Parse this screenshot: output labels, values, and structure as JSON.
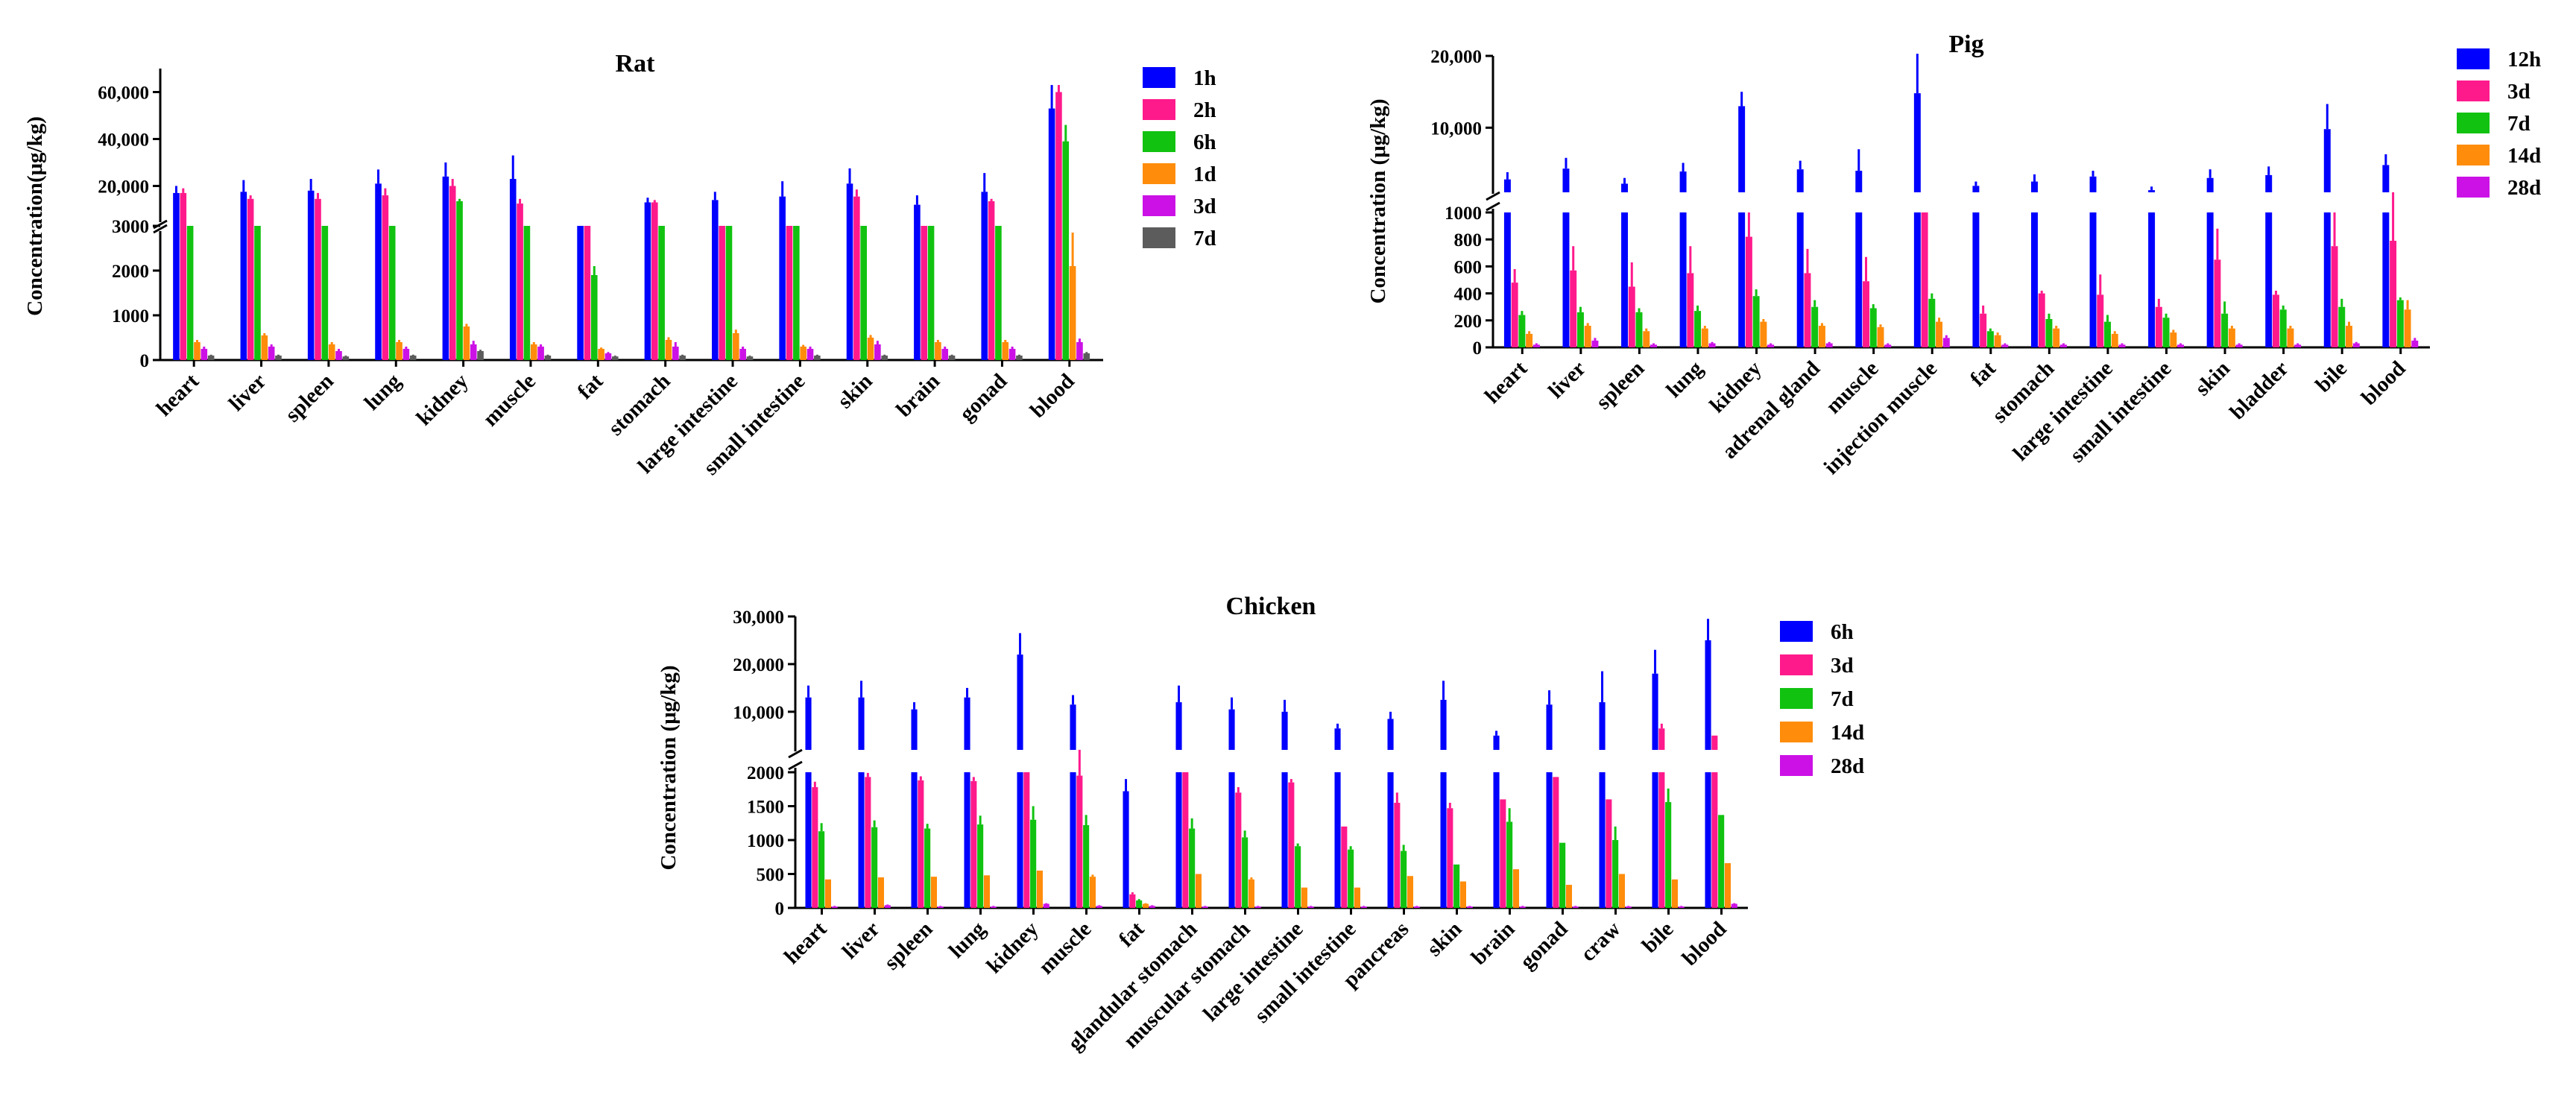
{
  "chart_data": [
    {
      "type": "bar",
      "title": "Rat",
      "xlabel": "",
      "ylabel": "Concentration(μg/kg)",
      "broken_axis": {
        "lower_range": [
          0,
          3000
        ],
        "upper_range": [
          3000,
          70000
        ]
      },
      "lower_ticks": [
        "0",
        "1000",
        "2000",
        "3000"
      ],
      "upper_ticks": [
        {
          "v": 20000,
          "label": "20,000"
        },
        {
          "v": 40000,
          "label": "40,000"
        },
        {
          "v": 60000,
          "label": "60,000"
        }
      ],
      "legend_position": "right",
      "categories": [
        "heart",
        "liver",
        "spleen",
        "lung",
        "kidney",
        "muscle",
        "fat",
        "stomach",
        "large intestine",
        "small intestine",
        "skin",
        "brain",
        "gonad",
        "blood"
      ],
      "series": [
        {
          "name": "1h",
          "color": "#0000ff",
          "values": [
            17000,
            17500,
            18000,
            21000,
            24000,
            23000,
            3000,
            13000,
            14000,
            15500,
            21000,
            12000,
            17500,
            53000
          ],
          "errors": [
            3000,
            5000,
            5000,
            6000,
            6000,
            10000,
            0,
            2000,
            3500,
            6500,
            6500,
            4000,
            8000,
            10000
          ]
        },
        {
          "name": "2h",
          "color": "#ff1a8c",
          "values": [
            17000,
            14500,
            14500,
            16000,
            20000,
            12500,
            3000,
            13000,
            3000,
            3000,
            15500,
            3000,
            13500,
            60000
          ],
          "errors": [
            2000,
            1500,
            2500,
            3000,
            3000,
            2000,
            0,
            1000,
            0,
            0,
            3000,
            0,
            1000,
            3000
          ]
        },
        {
          "name": "6h",
          "color": "#11c211",
          "values": [
            3000,
            3000,
            3000,
            3000,
            13500,
            3000,
            1900,
            3000,
            3000,
            3000,
            3000,
            3000,
            3000,
            39000
          ],
          "errors": [
            0,
            0,
            0,
            0,
            1000,
            0,
            200,
            0,
            0,
            0,
            0,
            0,
            0,
            7000
          ]
        },
        {
          "name": "1d",
          "color": "#ff8c0a",
          "values": [
            400,
            550,
            350,
            400,
            750,
            350,
            250,
            450,
            600,
            300,
            500,
            400,
            400,
            2100
          ],
          "errors": [
            50,
            50,
            50,
            50,
            60,
            50,
            30,
            60,
            80,
            40,
            60,
            50,
            50,
            750
          ]
        },
        {
          "name": "3d",
          "color": "#cc11e6",
          "values": [
            250,
            300,
            200,
            250,
            350,
            300,
            150,
            300,
            250,
            250,
            350,
            250,
            250,
            400
          ],
          "errors": [
            50,
            50,
            50,
            50,
            80,
            50,
            30,
            100,
            50,
            50,
            80,
            50,
            50,
            80
          ]
        },
        {
          "name": "7d",
          "color": "#5c5c5c",
          "values": [
            100,
            100,
            80,
            100,
            200,
            100,
            80,
            100,
            80,
            100,
            100,
            100,
            100,
            150
          ],
          "errors": [
            20,
            20,
            20,
            20,
            30,
            20,
            20,
            20,
            20,
            20,
            20,
            20,
            20,
            30
          ]
        }
      ]
    },
    {
      "type": "bar",
      "title": "Pig",
      "xlabel": "",
      "ylabel": "Concentration (μg/kg)",
      "broken_axis": {
        "lower_range": [
          0,
          1000
        ],
        "upper_range": [
          1000,
          20000
        ]
      },
      "lower_ticks": [
        "0",
        "200",
        "400",
        "600",
        "800",
        "1000"
      ],
      "upper_ticks": [
        {
          "v": 10000,
          "label": "10,000"
        },
        {
          "v": 20000,
          "label": "20,000"
        }
      ],
      "legend_position": "right",
      "categories": [
        "heart",
        "liver",
        "spleen",
        "lung",
        "kidney",
        "adrenal gland",
        "muscle",
        "injection muscle",
        "fat",
        "stomach",
        "large intestine",
        "small intestine",
        "skin",
        "bladder",
        "bile",
        "blood"
      ],
      "series": [
        {
          "name": "12h",
          "color": "#0000ff",
          "values": [
            2800,
            4300,
            2200,
            3900,
            13000,
            4200,
            4000,
            14800,
            1900,
            2500,
            3200,
            1300,
            3000,
            3400,
            9800,
            4800
          ],
          "errors": [
            1000,
            1500,
            800,
            1200,
            2000,
            1200,
            3000,
            5500,
            600,
            1000,
            800,
            500,
            1200,
            1200,
            3500,
            1500
          ]
        },
        {
          "name": "3d",
          "color": "#ff1a8c",
          "values": [
            480,
            570,
            450,
            550,
            820,
            550,
            490,
            1000,
            250,
            400,
            390,
            300,
            650,
            390,
            750,
            790
          ],
          "errors": [
            100,
            180,
            180,
            200,
            180,
            180,
            180,
            0,
            60,
            20,
            150,
            60,
            230,
            30,
            250,
            220
          ]
        },
        {
          "name": "7d",
          "color": "#11c211",
          "values": [
            240,
            260,
            260,
            270,
            380,
            300,
            290,
            360,
            120,
            210,
            190,
            220,
            250,
            280,
            300,
            350
          ],
          "errors": [
            30,
            40,
            30,
            40,
            50,
            50,
            30,
            40,
            20,
            40,
            50,
            30,
            90,
            30,
            60,
            20
          ]
        },
        {
          "name": "14d",
          "color": "#ff8c0a",
          "values": [
            100,
            160,
            120,
            140,
            190,
            160,
            150,
            190,
            90,
            140,
            100,
            110,
            140,
            140,
            160,
            280
          ],
          "errors": [
            20,
            20,
            20,
            20,
            20,
            20,
            20,
            30,
            20,
            20,
            20,
            20,
            20,
            20,
            30,
            70
          ]
        },
        {
          "name": "28d",
          "color": "#cc11e6",
          "values": [
            20,
            50,
            20,
            30,
            20,
            30,
            20,
            70,
            20,
            20,
            20,
            20,
            20,
            20,
            30,
            50
          ],
          "errors": [
            10,
            20,
            10,
            10,
            10,
            10,
            10,
            20,
            10,
            10,
            10,
            10,
            10,
            10,
            10,
            20
          ]
        }
      ]
    },
    {
      "type": "bar",
      "title": "Chicken",
      "xlabel": "",
      "ylabel": "Concentration (μg/kg)",
      "broken_axis": {
        "lower_range": [
          0,
          2000
        ],
        "upper_range": [
          2000,
          30000
        ]
      },
      "lower_ticks": [
        "0",
        "500",
        "1000",
        "1500",
        "2000"
      ],
      "upper_ticks": [
        {
          "v": 10000,
          "label": "10,000"
        },
        {
          "v": 20000,
          "label": "20,000"
        },
        {
          "v": 30000,
          "label": "30,000"
        }
      ],
      "legend_position": "right",
      "categories": [
        "heart",
        "liver",
        "spleen",
        "lung",
        "kidney",
        "muscle",
        "fat",
        "glandular stomach",
        "muscular stomach",
        "large intestine",
        "small intestine",
        "pancreas",
        "skin",
        "brain",
        "gonad",
        "craw",
        "bile",
        "blood"
      ],
      "series": [
        {
          "name": "6h",
          "color": "#0000ff",
          "values": [
            13000,
            13000,
            10500,
            13000,
            22000,
            11500,
            1720,
            12000,
            10500,
            10000,
            6500,
            8500,
            12500,
            5000,
            11500,
            12000,
            18000,
            25000
          ],
          "errors": [
            2500,
            3500,
            1500,
            2000,
            4500,
            2000,
            180,
            3500,
            2500,
            2500,
            1000,
            1500,
            4000,
            1000,
            3000,
            6500,
            5000,
            4500
          ]
        },
        {
          "name": "3d",
          "color": "#ff1a8c",
          "values": [
            1780,
            1930,
            1880,
            1870,
            2000,
            1950,
            200,
            2000,
            1700,
            1850,
            1200,
            1550,
            1470,
            1600,
            1930,
            1600,
            6500,
            5000
          ],
          "errors": [
            80,
            60,
            60,
            60,
            0,
            70,
            30,
            0,
            80,
            50,
            0,
            150,
            80,
            0,
            0,
            0,
            1000,
            0
          ]
        },
        {
          "name": "7d",
          "color": "#11c211",
          "values": [
            1130,
            1190,
            1170,
            1230,
            1300,
            1220,
            110,
            1170,
            1040,
            910,
            860,
            840,
            640,
            1270,
            960,
            1000,
            1560,
            1370
          ],
          "errors": [
            120,
            100,
            70,
            130,
            200,
            150,
            20,
            150,
            100,
            40,
            50,
            90,
            0,
            200,
            0,
            200,
            200,
            0
          ]
        },
        {
          "name": "14d",
          "color": "#ff8c0a",
          "values": [
            420,
            450,
            460,
            480,
            550,
            460,
            60,
            500,
            420,
            300,
            300,
            470,
            390,
            570,
            340,
            500,
            420,
            660
          ],
          "errors": [
            0,
            0,
            0,
            0,
            0,
            30,
            10,
            0,
            30,
            0,
            0,
            0,
            0,
            0,
            0,
            0,
            0,
            0
          ]
        },
        {
          "name": "28d",
          "color": "#cc11e6",
          "values": [
            20,
            40,
            20,
            20,
            60,
            30,
            30,
            20,
            20,
            20,
            20,
            20,
            20,
            20,
            20,
            20,
            20,
            60
          ],
          "errors": [
            10,
            10,
            10,
            10,
            10,
            10,
            10,
            10,
            10,
            10,
            10,
            10,
            10,
            10,
            10,
            10,
            10,
            10
          ]
        }
      ]
    }
  ]
}
